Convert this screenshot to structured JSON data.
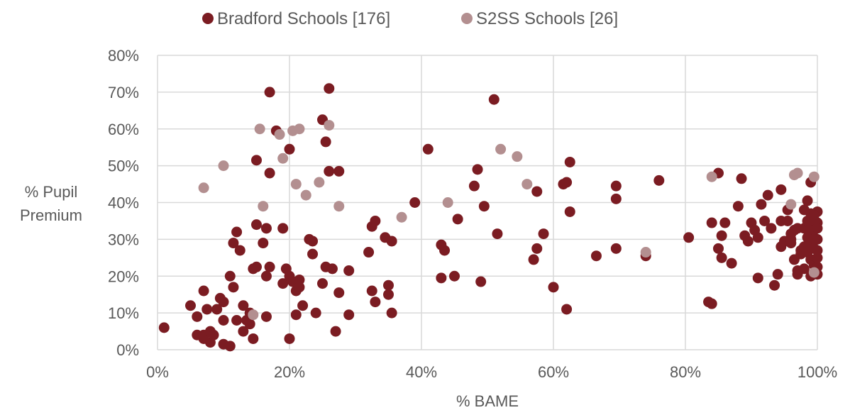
{
  "chart_data": {
    "type": "scatter",
    "title": "",
    "xlabel": "% BAME",
    "ylabel_lines": [
      "% Pupil",
      "Premium"
    ],
    "xlim": [
      0,
      100
    ],
    "ylim": [
      0,
      80
    ],
    "x_ticks": [
      0,
      20,
      40,
      60,
      80,
      100
    ],
    "x_tick_labels": [
      "0%",
      "20%",
      "40%",
      "60%",
      "80%",
      "100%"
    ],
    "y_ticks": [
      0,
      10,
      20,
      30,
      40,
      50,
      60,
      70,
      80
    ],
    "y_tick_labels": [
      "0%",
      "10%",
      "20%",
      "30%",
      "40%",
      "50%",
      "60%",
      "70%",
      "80%"
    ],
    "grid": true,
    "legend_position": "top",
    "series": [
      {
        "name": "Bradford Schools [176]",
        "color": "#7b1c22",
        "points": [
          [
            1,
            6
          ],
          [
            5,
            12
          ],
          [
            6,
            4
          ],
          [
            6,
            9
          ],
          [
            7,
            3
          ],
          [
            7,
            4
          ],
          [
            7,
            16
          ],
          [
            7.5,
            11
          ],
          [
            8,
            5
          ],
          [
            8,
            2
          ],
          [
            8.5,
            4
          ],
          [
            9,
            11
          ],
          [
            9.5,
            14
          ],
          [
            10,
            13
          ],
          [
            10,
            1.5
          ],
          [
            10,
            8
          ],
          [
            11,
            1
          ],
          [
            11,
            20
          ],
          [
            11.5,
            29
          ],
          [
            11.5,
            17
          ],
          [
            12,
            32
          ],
          [
            12.5,
            27
          ],
          [
            12,
            8
          ],
          [
            13,
            12
          ],
          [
            13,
            5
          ],
          [
            13.5,
            8
          ],
          [
            14,
            10
          ],
          [
            14,
            7
          ],
          [
            14.5,
            3
          ],
          [
            14.5,
            22
          ],
          [
            15,
            22.5
          ],
          [
            15,
            34
          ],
          [
            15,
            51.5
          ],
          [
            16,
            29
          ],
          [
            16.5,
            9
          ],
          [
            16.5,
            20
          ],
          [
            16.5,
            33
          ],
          [
            17,
            48
          ],
          [
            17,
            70
          ],
          [
            17,
            22.5
          ],
          [
            18,
            59.5
          ],
          [
            19,
            33
          ],
          [
            19,
            18
          ],
          [
            19.5,
            22
          ],
          [
            20,
            20
          ],
          [
            20,
            54.5
          ],
          [
            20,
            3
          ],
          [
            20.5,
            18.5
          ],
          [
            21,
            16
          ],
          [
            21,
            9.5
          ],
          [
            21.5,
            19
          ],
          [
            21.5,
            17
          ],
          [
            22,
            12
          ],
          [
            23,
            30
          ],
          [
            23.5,
            29.5
          ],
          [
            23.5,
            26
          ],
          [
            24,
            10
          ],
          [
            25,
            62.5
          ],
          [
            25,
            18
          ],
          [
            25.5,
            22.5
          ],
          [
            25.5,
            56.5
          ],
          [
            26,
            71
          ],
          [
            26,
            48.5
          ],
          [
            26.5,
            22
          ],
          [
            27,
            5
          ],
          [
            27.5,
            48.5
          ],
          [
            27.5,
            15.5
          ],
          [
            29,
            21.5
          ],
          [
            29,
            9.5
          ],
          [
            32,
            26.5
          ],
          [
            32.5,
            33.5
          ],
          [
            32.5,
            16
          ],
          [
            33,
            13
          ],
          [
            33,
            35
          ],
          [
            34.5,
            30.5
          ],
          [
            35,
            17.5
          ],
          [
            35,
            15
          ],
          [
            35.5,
            29.5
          ],
          [
            35.5,
            10
          ],
          [
            39,
            40
          ],
          [
            41,
            54.5
          ],
          [
            43,
            28.5
          ],
          [
            43,
            19.5
          ],
          [
            43.5,
            27
          ],
          [
            45,
            20
          ],
          [
            45.5,
            35.5
          ],
          [
            48,
            44.5
          ],
          [
            48.5,
            49
          ],
          [
            49,
            18.5
          ],
          [
            49.5,
            39
          ],
          [
            51,
            68
          ],
          [
            51.5,
            31.5
          ],
          [
            57,
            24.5
          ],
          [
            57.5,
            27.5
          ],
          [
            57.5,
            43
          ],
          [
            58.5,
            31.5
          ],
          [
            60,
            17
          ],
          [
            62,
            11
          ],
          [
            61.5,
            45
          ],
          [
            62,
            45.5
          ],
          [
            62.5,
            37.5
          ],
          [
            62.5,
            51
          ],
          [
            66.5,
            25.5
          ],
          [
            69.5,
            41
          ],
          [
            69.5,
            44.5
          ],
          [
            69.5,
            27.5
          ],
          [
            74,
            25.5
          ],
          [
            76,
            46
          ],
          [
            80.5,
            30.5
          ],
          [
            83.5,
            13
          ],
          [
            84,
            12.5
          ],
          [
            84,
            34.5
          ],
          [
            85,
            48
          ],
          [
            85,
            27.5
          ],
          [
            85.5,
            31
          ],
          [
            85.5,
            25
          ],
          [
            86,
            34.5
          ],
          [
            87,
            23.5
          ],
          [
            88,
            39
          ],
          [
            88.5,
            46.5
          ],
          [
            89,
            31
          ],
          [
            89.5,
            29.5
          ],
          [
            90,
            34.5
          ],
          [
            90.5,
            32.5
          ],
          [
            91,
            19.5
          ],
          [
            91,
            30.5
          ],
          [
            91.5,
            39.5
          ],
          [
            92,
            35
          ],
          [
            92.5,
            42
          ],
          [
            93,
            33
          ],
          [
            93.5,
            17.5
          ],
          [
            94,
            20.5
          ],
          [
            94.5,
            35
          ],
          [
            94.5,
            43.5
          ],
          [
            94.5,
            28
          ],
          [
            95,
            29.5
          ],
          [
            95.5,
            35
          ],
          [
            95.5,
            38
          ],
          [
            96,
            31.5
          ],
          [
            96,
            30
          ],
          [
            96,
            29
          ],
          [
            96.5,
            32.5
          ],
          [
            96.5,
            24.5
          ],
          [
            97,
            33
          ],
          [
            97,
            21.5
          ],
          [
            97,
            20.5
          ],
          [
            97.5,
            27
          ],
          [
            97.5,
            26
          ],
          [
            98,
            38
          ],
          [
            98,
            33
          ],
          [
            98,
            22
          ],
          [
            98.5,
            40.5
          ],
          [
            98.5,
            35
          ],
          [
            98.5,
            30.5
          ],
          [
            98.5,
            26.5
          ],
          [
            99,
            37
          ],
          [
            99,
            33
          ],
          [
            99,
            29
          ],
          [
            99,
            24.5
          ],
          [
            99,
            20
          ],
          [
            99,
            45.5
          ],
          [
            99.5,
            35
          ],
          [
            99.5,
            32.5
          ],
          [
            99.5,
            27.5
          ],
          [
            99.5,
            23
          ],
          [
            100,
            37.5
          ],
          [
            100,
            34.5
          ],
          [
            100,
            30
          ],
          [
            100,
            25
          ],
          [
            100,
            20.5
          ],
          [
            99.5,
            36.5
          ],
          [
            99.5,
            30
          ],
          [
            100,
            33
          ],
          [
            100,
            27
          ],
          [
            100,
            22.5
          ],
          [
            98,
            28
          ]
        ]
      },
      {
        "name": "S2SS Schools [26]",
        "color": "#b38f90",
        "points": [
          [
            7,
            44
          ],
          [
            10,
            50
          ],
          [
            14.5,
            9.5
          ],
          [
            15.5,
            60
          ],
          [
            16,
            39
          ],
          [
            18.5,
            58.5
          ],
          [
            19,
            52
          ],
          [
            20.5,
            59.5
          ],
          [
            21,
            45
          ],
          [
            21.5,
            60
          ],
          [
            22.5,
            42
          ],
          [
            24.5,
            45.5
          ],
          [
            26,
            61
          ],
          [
            27.5,
            39
          ],
          [
            37,
            36
          ],
          [
            44,
            40
          ],
          [
            52,
            54.5
          ],
          [
            54.5,
            52.5
          ],
          [
            56,
            45
          ],
          [
            74,
            26.5
          ],
          [
            84,
            47
          ],
          [
            96,
            39.5
          ],
          [
            96.5,
            47.5
          ],
          [
            97,
            48
          ],
          [
            99.5,
            47
          ],
          [
            99.5,
            21
          ]
        ]
      }
    ]
  }
}
